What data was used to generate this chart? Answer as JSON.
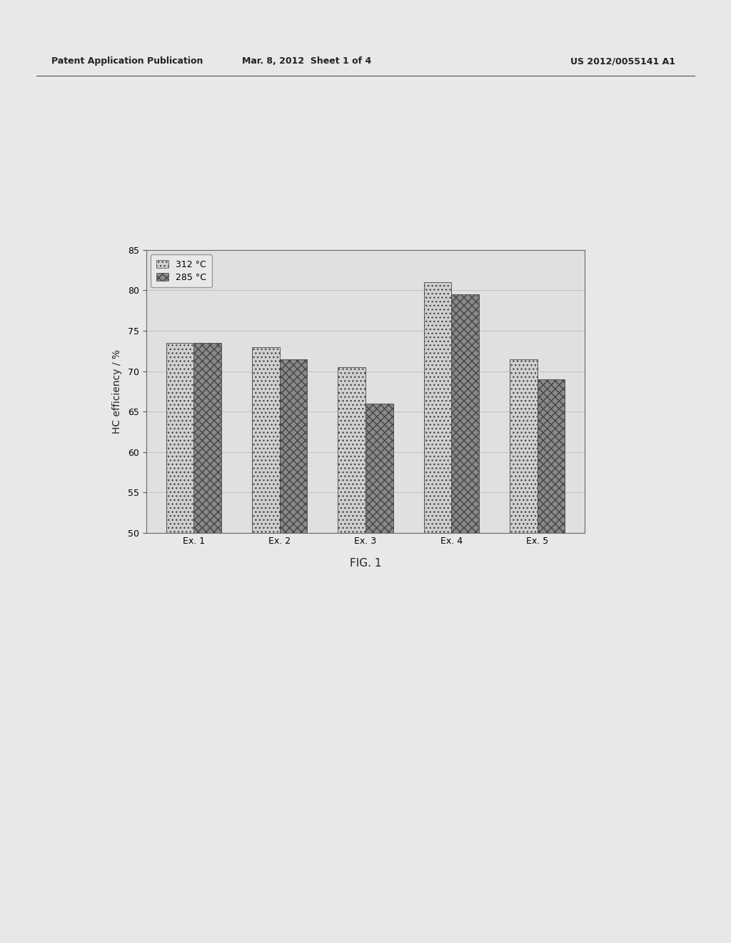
{
  "categories": [
    "Ex. 1",
    "Ex. 2",
    "Ex. 3",
    "Ex. 4",
    "Ex. 5"
  ],
  "series": [
    {
      "label": "312 °C",
      "values": [
        73.5,
        73.0,
        70.5,
        81.0,
        71.5
      ],
      "color": "#d0d0d0",
      "hatch": "..."
    },
    {
      "label": "285 °C",
      "values": [
        73.5,
        71.5,
        66.0,
        79.5,
        69.0
      ],
      "color": "#888888",
      "hatch": "xxx"
    }
  ],
  "ylabel": "HC efficiency / %",
  "ylim": [
    50,
    85
  ],
  "yticks": [
    50,
    55,
    60,
    65,
    70,
    75,
    80,
    85
  ],
  "figure_caption": "FIG. 1",
  "header_left": "Patent Application Publication",
  "header_mid": "Mar. 8, 2012  Sheet 1 of 4",
  "header_right": "US 2012/0055141 A1",
  "bar_width": 0.32,
  "page_bg": "#e8e8e8",
  "plot_bg": "#e0e0e0",
  "legend_fontsize": 9,
  "tick_fontsize": 9,
  "label_fontsize": 10
}
